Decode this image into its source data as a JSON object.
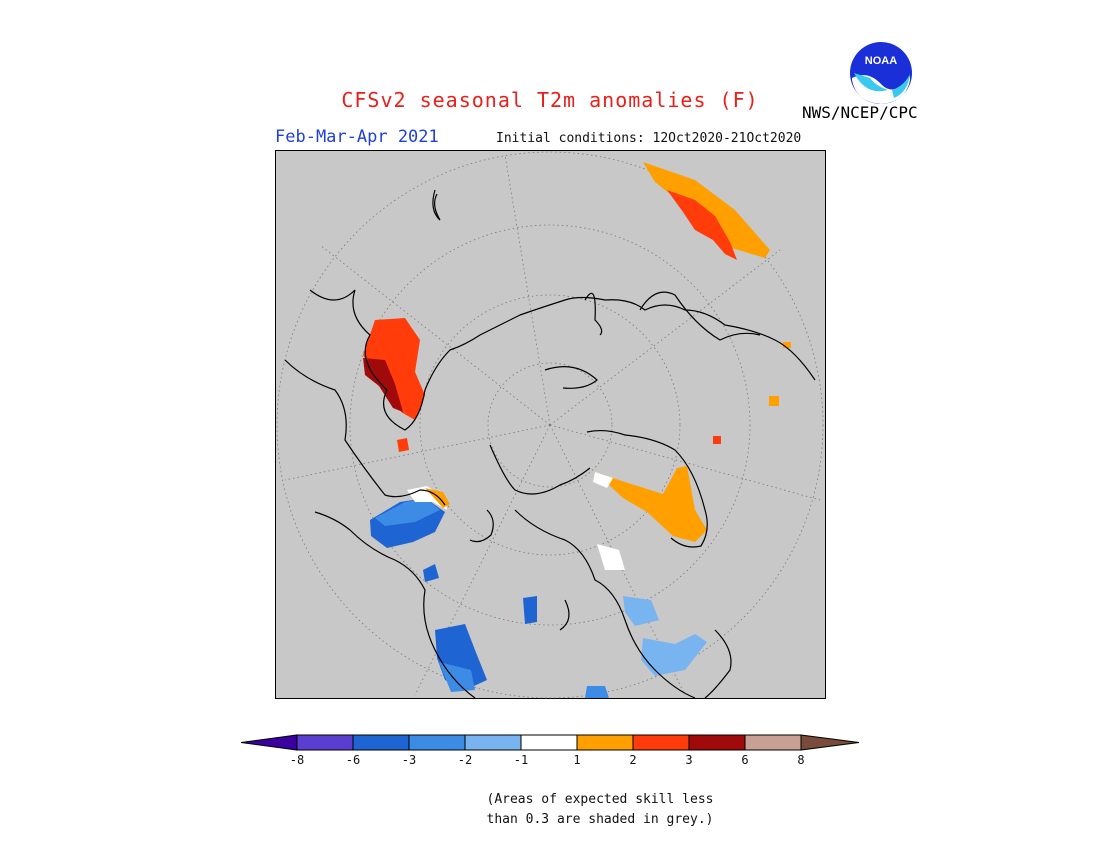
{
  "header": {
    "title": "CFSv2 seasonal T2m anomalies (F)",
    "season": "Feb-Mar-Apr 2021",
    "initial_conditions": "Initial conditions: 12Oct2020-21Oct2020",
    "agency": "NWS/NCEP/CPC",
    "logo_text": "NOAA"
  },
  "map": {
    "projection": "north-polar-stereographic",
    "background_color": "#c8c8c8",
    "skill_mask_note": "grey = skill < 0.3"
  },
  "legend": {
    "ticks": [
      "-8",
      "-6",
      "-3",
      "-2",
      "-1",
      "1",
      "2",
      "3",
      "6",
      "8"
    ],
    "colors": [
      "#3a00a0",
      "#5a3ed0",
      "#1e64d2",
      "#3c8ce6",
      "#78b4f0",
      "#ffffff",
      "#ffa000",
      "#ff3c0a",
      "#a00a0a",
      "#c8a094",
      "#7a4a3a"
    ]
  },
  "footnote": {
    "line1": "(Areas of expected skill less",
    "line2": "than 0.3 are shaded in grey.)"
  }
}
